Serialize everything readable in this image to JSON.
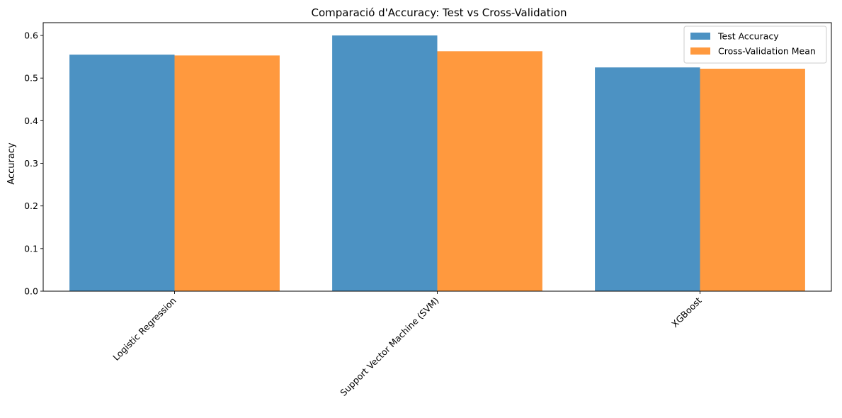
{
  "chart_data": {
    "type": "bar",
    "title": "Comparació d'Accuracy: Test vs Cross-Validation",
    "xlabel": "",
    "ylabel": "Accuracy",
    "categories": [
      "Logistic Regression",
      "Support Vector Machine (SVM)",
      "XGBoost"
    ],
    "series": [
      {
        "name": "Test Accuracy",
        "color": "#4c92c3",
        "values": [
          0.555,
          0.6,
          0.525
        ]
      },
      {
        "name": "Cross-Validation Mean",
        "color": "#ff993e",
        "values": [
          0.553,
          0.563,
          0.522
        ]
      }
    ],
    "ylim": [
      0,
      0.63
    ],
    "yticks": [
      0.0,
      0.1,
      0.2,
      0.3,
      0.4,
      0.5,
      0.6
    ],
    "ytick_labels": [
      "0.0",
      "0.1",
      "0.2",
      "0.3",
      "0.4",
      "0.5",
      "0.6"
    ],
    "grid": false,
    "legend_position": "top-right"
  }
}
